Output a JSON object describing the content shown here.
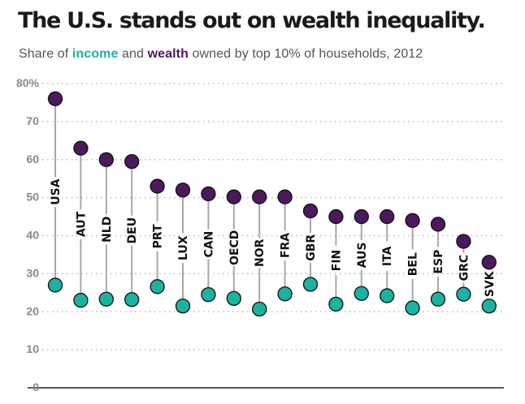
{
  "title": "The U.S. stands out on wealth inequality.",
  "subtitle": {
    "before": "Share of ",
    "income_word": "income",
    "middle": " and ",
    "wealth_word": "wealth",
    "after": " owned by top 10% of households, 2012"
  },
  "colors": {
    "income": "#1bb39f",
    "wealth": "#4b1a5c",
    "stem": "#a8a8a8",
    "grid": "#b5b5b5"
  },
  "chart_data": {
    "type": "dot-range",
    "title": "The U.S. stands out on wealth inequality.",
    "subtitle": "Share of income and wealth owned by top 10% of households, 2012",
    "y_ticks": [
      "80%",
      "70",
      "60",
      "50",
      "40",
      "30",
      "20",
      "10",
      "0"
    ],
    "ylim": [
      0,
      80
    ],
    "categories": [
      "USA",
      "AUT",
      "NLD",
      "DEU",
      "PRT",
      "LUX",
      "CAN",
      "OECD",
      "NOR",
      "FRA",
      "GBR",
      "FIN",
      "AUS",
      "ITA",
      "BEL",
      "ESP",
      "GRC",
      "SVK"
    ],
    "series": [
      {
        "name": "income",
        "values": [
          27,
          23,
          23.3,
          23.2,
          26.6,
          21.5,
          24.5,
          23.5,
          20.7,
          24.7,
          27.2,
          22,
          24.8,
          24.2,
          21,
          23.3,
          24.6,
          21.5
        ]
      },
      {
        "name": "wealth",
        "values": [
          76,
          63,
          60,
          59.5,
          53,
          52,
          51,
          50.2,
          50.2,
          50.2,
          46.5,
          45,
          45,
          45,
          44,
          43,
          38.5,
          33
        ]
      }
    ]
  }
}
